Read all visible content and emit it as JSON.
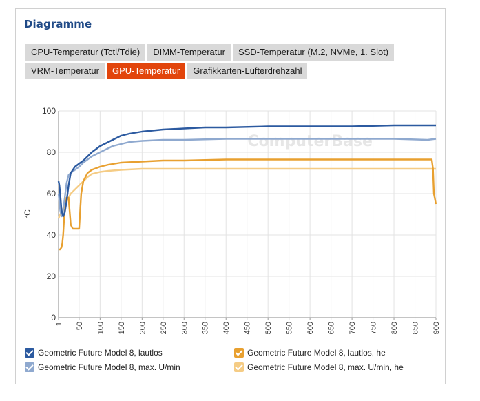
{
  "panel": {
    "title": "Diagramme",
    "tabs_row1": [
      "CPU-Temperatur (Tctl/Tdie)",
      "DIMM-Temperatur",
      "SSD-Temperatur (M.2, NVMe, 1. Slot)"
    ],
    "tabs_row2": [
      "VRM-Temperatur",
      "GPU-Temperatur",
      "Grafikkarten-Lüfterdrehzahl"
    ],
    "active_tab": "GPU-Temperatur"
  },
  "chart_data": {
    "type": "line",
    "ylabel": "°C",
    "xlabel": "",
    "xlim": [
      1,
      900
    ],
    "ylim": [
      0,
      100
    ],
    "x_ticks": [
      1,
      50,
      100,
      150,
      200,
      250,
      300,
      350,
      400,
      450,
      500,
      550,
      600,
      650,
      700,
      750,
      800,
      850,
      900
    ],
    "y_ticks": [
      0,
      20,
      40,
      60,
      80,
      100
    ],
    "grid": true,
    "legend_position": "bottom",
    "series": [
      {
        "name": "Geometric Future Model 8, lautlos",
        "color": "#2c5aa0",
        "x": [
          1,
          3,
          5,
          8,
          12,
          16,
          20,
          25,
          30,
          40,
          50,
          60,
          70,
          80,
          90,
          100,
          110,
          120,
          130,
          140,
          150,
          170,
          200,
          250,
          300,
          350,
          400,
          500,
          600,
          700,
          800,
          880,
          900
        ],
        "y": [
          66,
          64,
          60,
          52,
          49,
          51,
          56,
          64,
          70,
          73,
          74.5,
          76,
          78,
          80,
          81.5,
          83,
          84,
          85,
          86,
          87,
          88,
          89,
          90,
          91,
          91.5,
          92,
          92,
          92.5,
          92.5,
          92.5,
          93,
          93,
          93
        ]
      },
      {
        "name": "Geometric Future Model 8, max. U/min",
        "color": "#8fa9cf",
        "x": [
          1,
          3,
          5,
          8,
          12,
          16,
          20,
          25,
          30,
          40,
          50,
          60,
          70,
          80,
          90,
          100,
          110,
          120,
          130,
          140,
          150,
          170,
          200,
          250,
          300,
          400,
          500,
          600,
          700,
          800,
          880,
          900
        ],
        "y": [
          60,
          56,
          52,
          49,
          52,
          58,
          65,
          69,
          70,
          71.5,
          73,
          75,
          76.5,
          78,
          79,
          80,
          81,
          82,
          83,
          83.5,
          84,
          85,
          85.5,
          86,
          86,
          86.5,
          86.5,
          86.5,
          86.5,
          86.5,
          86,
          86.5
        ]
      },
      {
        "name": "Geometric Future Model 8, lautlos, he",
        "color": "#e8a030",
        "x": [
          1,
          5,
          8,
          10,
          12,
          15,
          18,
          20,
          25,
          30,
          35,
          40,
          45,
          50,
          55,
          60,
          70,
          80,
          100,
          120,
          150,
          200,
          250,
          300,
          400,
          500,
          600,
          700,
          800,
          860,
          890,
          893,
          895,
          900
        ],
        "y": [
          33,
          33,
          34,
          36,
          40,
          50,
          55,
          58,
          58,
          45,
          43,
          43,
          43,
          43,
          60,
          66,
          70,
          71.5,
          73,
          74,
          75,
          75.5,
          76,
          76,
          76.5,
          76.5,
          76.5,
          76.5,
          76.5,
          76.5,
          76.5,
          72,
          60,
          55
        ]
      },
      {
        "name": "Geometric Future Model 8, max. U/min, he",
        "color": "#f5cc85",
        "x": [
          1,
          5,
          10,
          15,
          20,
          25,
          30,
          40,
          50,
          60,
          70,
          80,
          100,
          120,
          150,
          200,
          250,
          300,
          400,
          500,
          600,
          700,
          800,
          850,
          900
        ],
        "y": [
          48,
          50,
          52,
          54,
          56,
          58,
          60,
          62,
          64,
          66,
          68,
          69.5,
          70.5,
          71,
          71.5,
          72,
          72,
          72,
          72,
          72,
          72,
          72,
          72,
          72,
          72
        ]
      }
    ]
  },
  "legend": {
    "items": [
      "Geometric Future Model 8, lautlos",
      "Geometric Future Model 8, lautlos, he",
      "Geometric Future Model 8, max. U/min",
      "Geometric Future Model 8, max. U/min, he"
    ],
    "colors": [
      "#2c5aa0",
      "#e8a030",
      "#8fa9cf",
      "#f5cc85"
    ]
  },
  "watermark": "ComputerBase"
}
